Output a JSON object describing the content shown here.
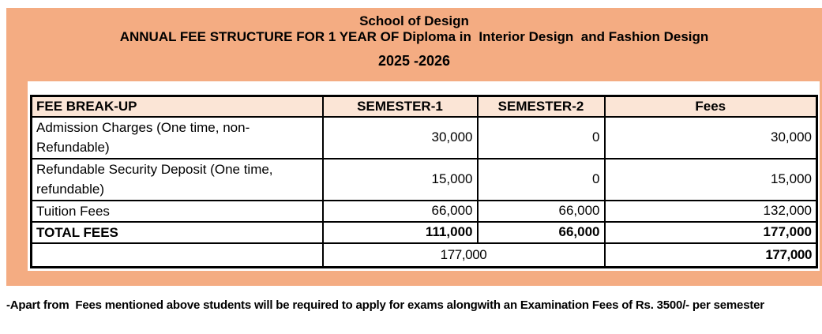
{
  "banner": {
    "line1": "School of Design",
    "line2": "ANNUAL FEE STRUCTURE FOR 1 YEAR OF Diploma in  Interior Design  and Fashion Design",
    "line3": "2025 -2026"
  },
  "table": {
    "columns": [
      "FEE BREAK-UP",
      "SEMESTER-1",
      "SEMESTER-2",
      "Fees"
    ],
    "rows": [
      {
        "label": "Admission Charges (One time, non-Refundable)",
        "sem1": "30,000",
        "sem2": "0",
        "fees": "30,000"
      },
      {
        "label": "Refundable Security Deposit (One time, refundable)",
        "sem1": "15,000",
        "sem2": "0",
        "fees": "15,000"
      },
      {
        "label": "Tuition Fees",
        "sem1": "66,000",
        "sem2": "66,000",
        "fees": "132,000"
      },
      {
        "label": "TOTAL FEES",
        "sem1": "111,000",
        "sem2": "66,000",
        "fees": "177,000"
      }
    ],
    "grand_total_row": {
      "label": "",
      "semesters_merged": "177,000",
      "fees": "177,000"
    }
  },
  "footnote": "-Apart from  Fees mentioned above students will be required to apply for exams alongwith an Examination Fees of Rs. 3500/- per semester",
  "colors": {
    "banner_bg": "#F4AC82",
    "table_header_bg": "#FBE5D6",
    "border": "#000000",
    "text": "#000000"
  }
}
